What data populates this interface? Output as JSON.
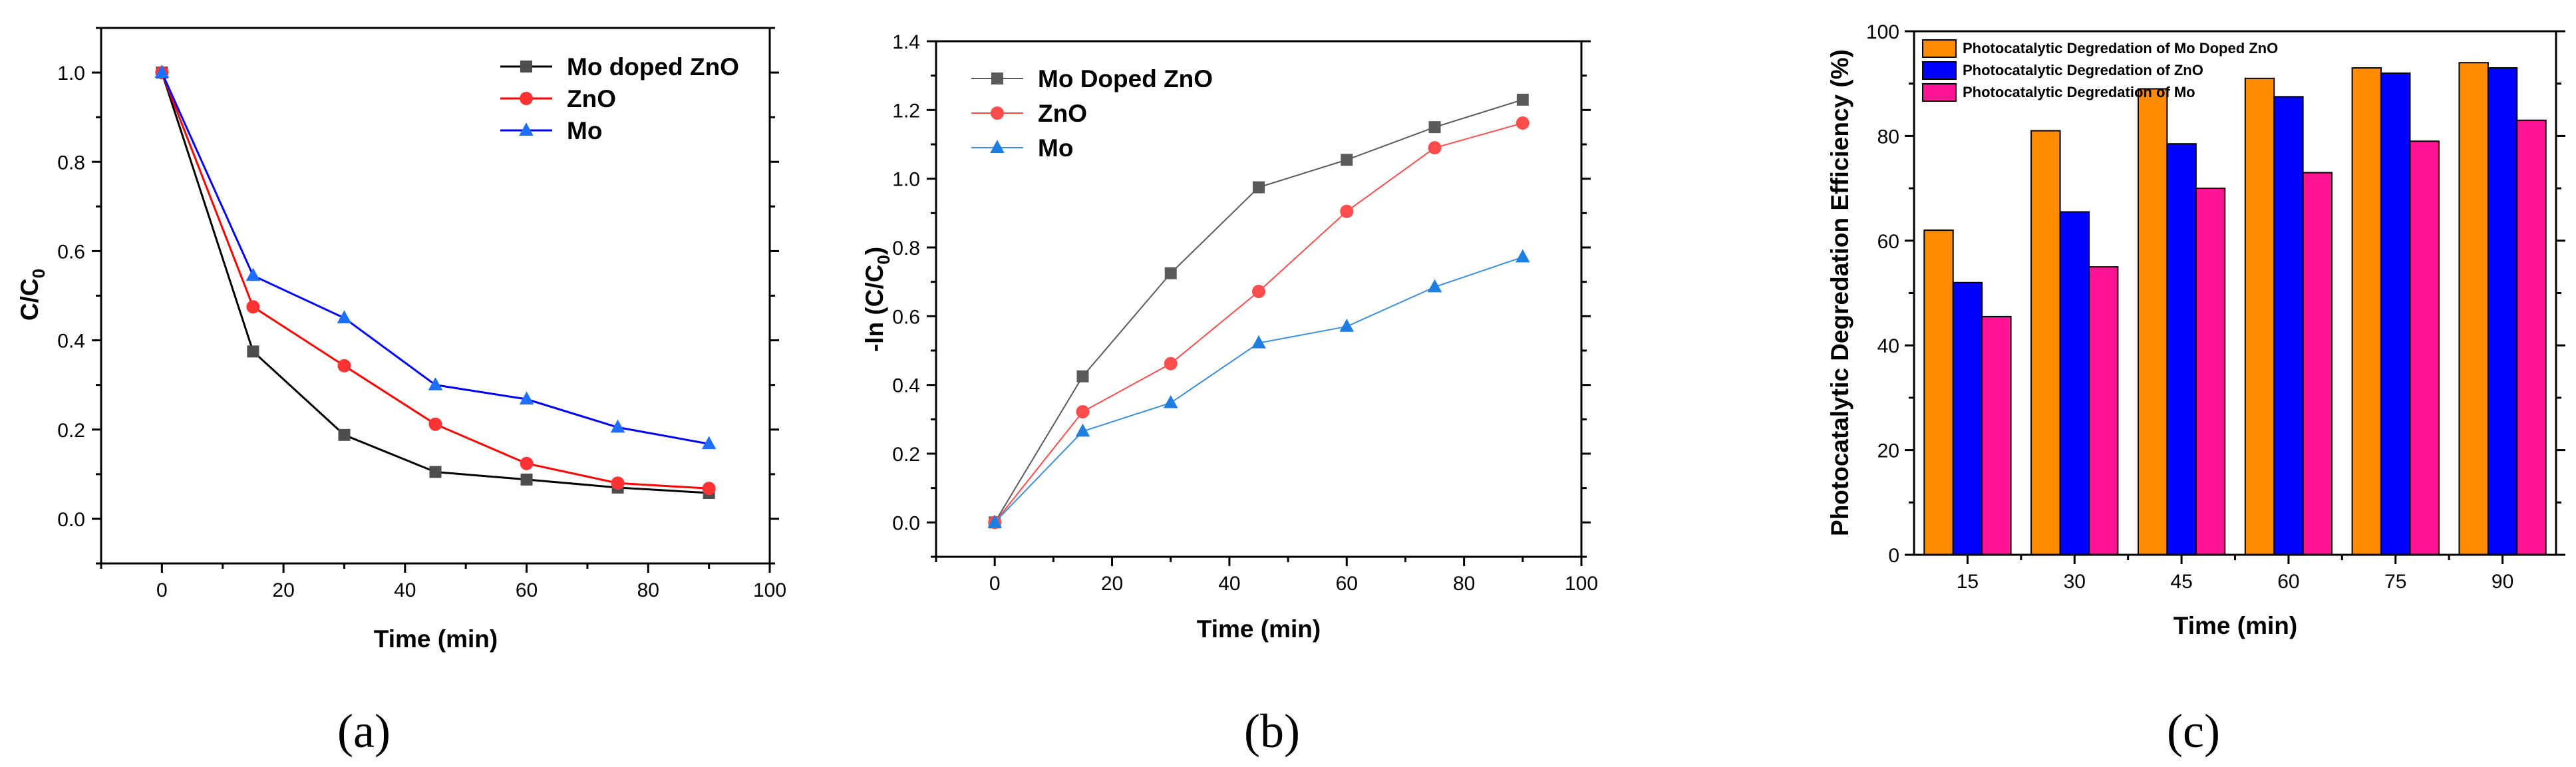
{
  "chart_data": [
    {
      "type": "line",
      "panel_label": "(a)",
      "xlabel": "Time (min)",
      "ylabel": "C/C",
      "ylabel_sub": "0",
      "xlim": [
        -10,
        100
      ],
      "ylim": [
        -0.1,
        1.1
      ],
      "xticks": [
        0,
        20,
        40,
        60,
        80,
        100
      ],
      "xtick_labels": [
        "0",
        "20",
        "40",
        "60",
        "80",
        "100"
      ],
      "yticks": [
        0.0,
        0.2,
        0.4,
        0.6,
        0.8,
        1.0
      ],
      "ytick_labels": [
        "0.0",
        "0.2",
        "0.4",
        "0.6",
        "0.8",
        "1.0"
      ],
      "legend_position": "top-right",
      "x": [
        0,
        15,
        30,
        45,
        60,
        75,
        90
      ],
      "series": [
        {
          "name": "Mo doped ZnO",
          "color": "#000000",
          "marker_color": "#4d4d4d",
          "marker": "square",
          "values": [
            1.0,
            0.375,
            0.188,
            0.105,
            0.088,
            0.07,
            0.058
          ]
        },
        {
          "name": "ZnO",
          "color": "#ff0000",
          "marker_color": "#ff3333",
          "marker": "circle",
          "values": [
            1.0,
            0.475,
            0.343,
            0.212,
            0.124,
            0.08,
            0.068
          ]
        },
        {
          "name": "Mo",
          "color": "#0000ff",
          "marker_color": "#1f6fff",
          "marker": "triangle",
          "values": [
            1.0,
            0.545,
            0.45,
            0.3,
            0.268,
            0.205,
            0.168
          ]
        }
      ]
    },
    {
      "type": "line",
      "panel_label": "(b)",
      "xlabel": "Time (min)",
      "ylabel": "-ln (C/C",
      "ylabel_sub": "0",
      "ylabel_end": ")",
      "xlim": [
        -10,
        100
      ],
      "ylim": [
        -0.1,
        1.4
      ],
      "xticks": [
        0,
        20,
        40,
        60,
        80,
        100
      ],
      "xtick_labels": [
        "0",
        "20",
        "40",
        "60",
        "80",
        "100"
      ],
      "yticks": [
        0.0,
        0.2,
        0.4,
        0.6,
        0.8,
        1.0,
        1.2,
        1.4
      ],
      "ytick_labels": [
        "0.0",
        "0.2",
        "0.4",
        "0.6",
        "0.8",
        "1.0",
        "1.2",
        "1.4"
      ],
      "legend_position": "top-left",
      "x": [
        0,
        15,
        30,
        45,
        60,
        75,
        90
      ],
      "series": [
        {
          "name": "Mo Doped ZnO",
          "color": "#5a5a5a",
          "marker_color": "#5a5a5a",
          "marker": "square",
          "values": [
            0.0,
            0.425,
            0.725,
            0.975,
            1.055,
            1.15,
            1.23
          ]
        },
        {
          "name": "ZnO",
          "color": "#ff4d4d",
          "marker_color": "#ff4d4d",
          "marker": "circle",
          "values": [
            0.0,
            0.322,
            0.462,
            0.672,
            0.905,
            1.09,
            1.162
          ]
        },
        {
          "name": "Mo",
          "color": "#3d8fe0",
          "marker_color": "#1f7fe0",
          "marker": "triangle",
          "values": [
            0.0,
            0.265,
            0.348,
            0.522,
            0.57,
            0.685,
            0.772
          ]
        }
      ]
    },
    {
      "type": "bar",
      "panel_label": "(c)",
      "xlabel": "Time (min)",
      "ylabel": "Photocatalytic Degredation Efficiency (%)",
      "ylim": [
        0,
        100
      ],
      "yticks": [
        0,
        20,
        40,
        60,
        80,
        100
      ],
      "ytick_labels": [
        "0",
        "20",
        "40",
        "60",
        "80",
        "100"
      ],
      "categories": [
        "15",
        "30",
        "45",
        "60",
        "75",
        "90"
      ],
      "legend_position": "top-left",
      "series": [
        {
          "name": "Photocatalytic Degredation of Mo Doped ZnO",
          "color": "#ff8c00",
          "values": [
            62,
            81,
            89,
            91,
            93,
            94
          ]
        },
        {
          "name": "Photocatalytic Degredation of ZnO",
          "color": "#0000ff",
          "values": [
            52,
            65.5,
            78.5,
            87.5,
            92,
            93
          ]
        },
        {
          "name": "Photocatalytic Degredation of Mo",
          "color": "#ff1493",
          "values": [
            45.5,
            55,
            70,
            73,
            79,
            83
          ]
        }
      ]
    }
  ]
}
